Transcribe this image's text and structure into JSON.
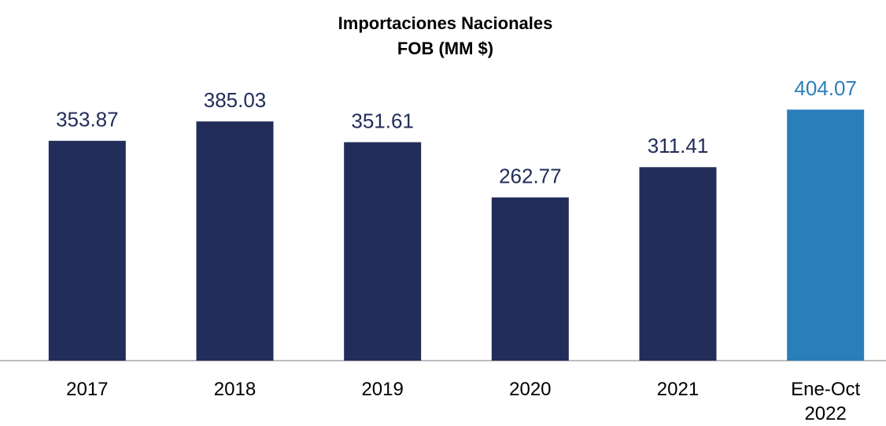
{
  "chart_data": {
    "type": "bar",
    "title": "Importaciones Nacionales",
    "subtitle": "FOB (MM $)",
    "categories": [
      "2017",
      "2018",
      "2019",
      "2020",
      "2021",
      "Ene-Oct 2022"
    ],
    "values": [
      353.87,
      385.03,
      351.61,
      262.77,
      311.41,
      404.07
    ],
    "colors": [
      "#222d5a",
      "#222d5a",
      "#222d5a",
      "#222d5a",
      "#222d5a",
      "#2a7fba"
    ]
  }
}
